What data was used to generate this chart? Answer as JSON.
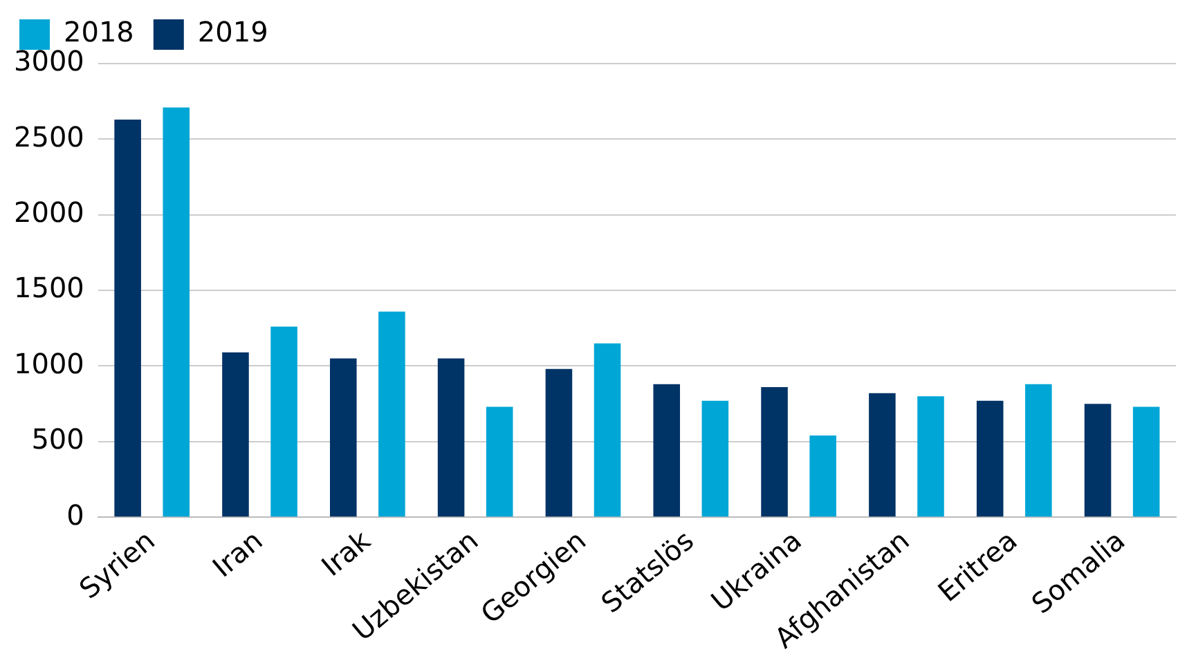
{
  "chart_data": {
    "type": "bar",
    "categories": [
      "Syrien",
      "Iran",
      "Irak",
      "Uzbekistan",
      "Georgien",
      "Statslös",
      "Ukraina",
      "Afghanistan",
      "Eritrea",
      "Somalia"
    ],
    "series": [
      {
        "name": "2019",
        "color": "#003366",
        "values": [
          2630,
          1090,
          1050,
          1050,
          980,
          880,
          860,
          820,
          770,
          750
        ]
      },
      {
        "name": "2018",
        "color": "#00a6d6",
        "values": [
          2710,
          1260,
          1360,
          730,
          1150,
          770,
          540,
          800,
          880,
          730
        ]
      }
    ],
    "ylim": [
      0,
      3000
    ],
    "yticks": [
      0,
      500,
      1000,
      1500,
      2000,
      2500,
      3000
    ],
    "grid": "y",
    "legend": "top left"
  }
}
